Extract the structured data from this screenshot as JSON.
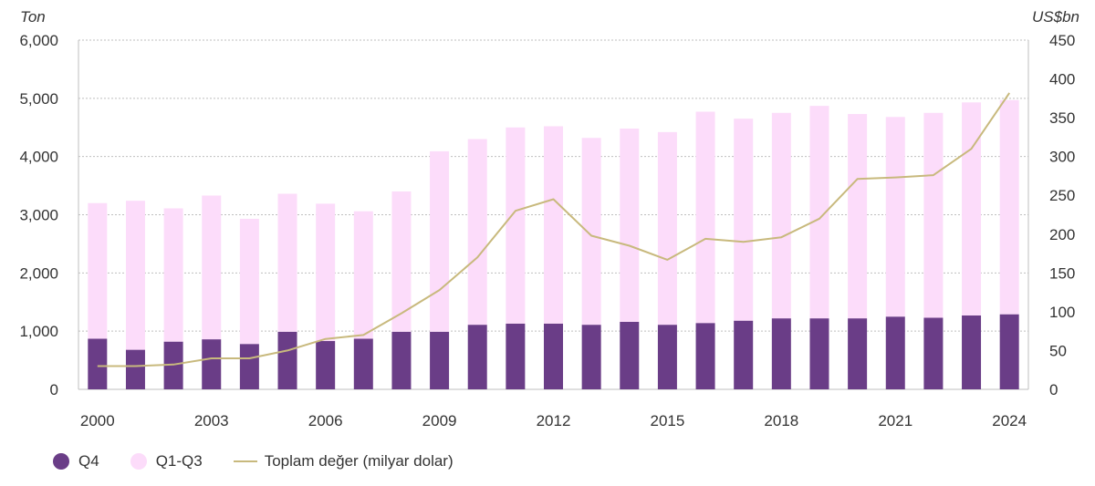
{
  "chart_data": {
    "type": "bar",
    "stacked": true,
    "categories": [
      "2000",
      "2001",
      "2002",
      "2003",
      "2004",
      "2005",
      "2006",
      "2007",
      "2008",
      "2009",
      "2010",
      "2011",
      "2012",
      "2013",
      "2014",
      "2015",
      "2016",
      "2017",
      "2018",
      "2019",
      "2020",
      "2021",
      "2022",
      "2023",
      "2024"
    ],
    "x_tick_labels": [
      "2000",
      "2003",
      "2006",
      "2009",
      "2012",
      "2015",
      "2018",
      "2021",
      "2024"
    ],
    "left_axis": {
      "unit_label": "Ton",
      "ylim": [
        0,
        6000
      ],
      "ticks": [
        "0",
        "1,000",
        "2,000",
        "3,000",
        "4,000",
        "5,000",
        "6,000"
      ],
      "tick_values": [
        0,
        1000,
        2000,
        3000,
        4000,
        5000,
        6000
      ]
    },
    "right_axis": {
      "unit_label": "US$bn",
      "ylim": [
        0,
        450
      ],
      "ticks": [
        "0",
        "50",
        "100",
        "150",
        "200",
        "250",
        "300",
        "350",
        "400",
        "450"
      ],
      "tick_values": [
        0,
        50,
        100,
        150,
        200,
        250,
        300,
        350,
        400,
        450
      ]
    },
    "series": [
      {
        "name": "Q4",
        "axis": "left",
        "kind": "bar",
        "color": "#6a3d87",
        "values": [
          870,
          680,
          820,
          860,
          780,
          990,
          830,
          870,
          990,
          990,
          1110,
          1130,
          1130,
          1110,
          1160,
          1110,
          1140,
          1180,
          1220,
          1220,
          1220,
          1250,
          1230,
          1270,
          1290
        ]
      },
      {
        "name": "Q1-Q3",
        "axis": "left",
        "kind": "bar",
        "color": "#fcdcfa",
        "values": [
          2330,
          2560,
          2290,
          2470,
          2150,
          2370,
          2360,
          2190,
          2410,
          3100,
          3190,
          3370,
          3390,
          3210,
          3320,
          3310,
          3630,
          3470,
          3530,
          3650,
          3510,
          3430,
          3520,
          3660,
          3680
        ]
      },
      {
        "name": "Toplam değer (milyar dolar)",
        "axis": "right",
        "kind": "line",
        "color": "#c8b97d",
        "values": [
          30,
          30,
          32,
          40,
          40,
          50,
          65,
          70,
          98,
          128,
          170,
          230,
          245,
          198,
          185,
          167,
          194,
          190,
          196,
          220,
          271,
          273,
          276,
          310,
          382
        ]
      }
    ],
    "title": "",
    "xlabel": "",
    "grid": true,
    "legend": "bottom-left"
  },
  "legend": {
    "q4": "Q4",
    "q1q3": "Q1-Q3",
    "line": "Toplam değer (milyar dolar)"
  }
}
